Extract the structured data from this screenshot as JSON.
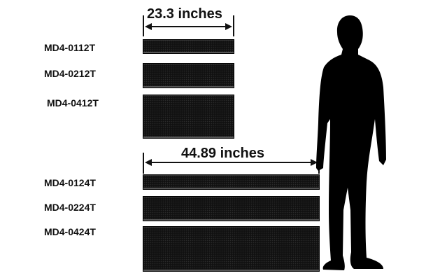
{
  "dimensions": {
    "small_width_label": "23.3 inches",
    "large_width_label": "44.89 inches"
  },
  "models": {
    "small": [
      "MD4-0112T",
      "MD4-0212T",
      "MD4-0412T"
    ],
    "large": [
      "MD4-0124T",
      "MD4-0224T",
      "MD4-0424T"
    ]
  },
  "figure": {
    "icon": "person-silhouette-icon"
  },
  "colors": {
    "sign": "#111111",
    "text": "#111111",
    "silhouette": "#000000"
  }
}
